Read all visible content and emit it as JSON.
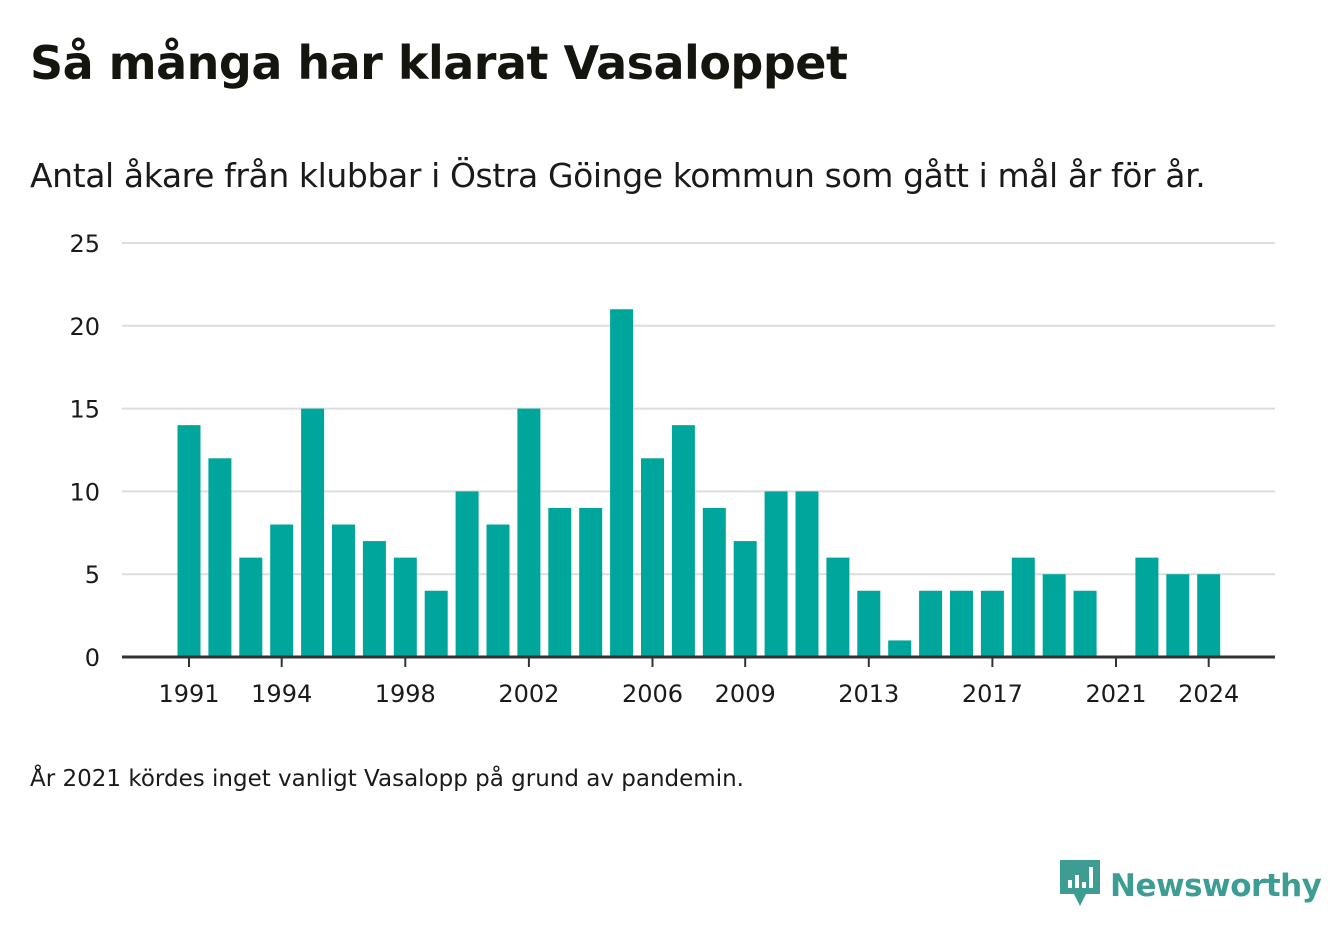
{
  "title": "Så många har klarat Vasaloppet",
  "subtitle": "Antal åkare från klubbar i Östra Göinge kommun som gått i mål år för år.",
  "note": "År 2021 kördes inget vanligt Vasalopp på grund av pandemin.",
  "brand": {
    "name": "Newsworthy",
    "icon": "newsworthy-logo-icon",
    "color": "#3e9d93"
  },
  "colors": {
    "bar": "#00a59b",
    "grid": "#dddddd",
    "axis": "#333333",
    "text": "#1a1a1a"
  },
  "chart_data": {
    "type": "bar",
    "title": "Så många har klarat Vasaloppet",
    "subtitle": "Antal åkare från klubbar i Östra Göinge kommun som gått i mål år för år.",
    "xlabel": "",
    "ylabel": "",
    "x": [
      1991,
      1992,
      1993,
      1994,
      1995,
      1996,
      1997,
      1998,
      1999,
      2000,
      2001,
      2002,
      2003,
      2004,
      2005,
      2006,
      2007,
      2008,
      2009,
      2010,
      2011,
      2012,
      2013,
      2014,
      2015,
      2016,
      2017,
      2018,
      2019,
      2020,
      2021,
      2022,
      2023,
      2024
    ],
    "values": [
      14,
      12,
      6,
      8,
      15,
      8,
      7,
      6,
      4,
      10,
      8,
      15,
      9,
      9,
      21,
      12,
      14,
      9,
      7,
      10,
      10,
      6,
      4,
      1,
      4,
      4,
      4,
      6,
      5,
      4,
      null,
      6,
      5,
      5
    ],
    "x_tick_labels": [
      "1991",
      "1994",
      "1998",
      "2002",
      "2006",
      "2009",
      "2013",
      "2017",
      "2021",
      "2024"
    ],
    "y_ticks": [
      0,
      5,
      10,
      15,
      20,
      25
    ],
    "ylim": [
      0,
      25
    ],
    "grid": true,
    "legend": "none"
  }
}
